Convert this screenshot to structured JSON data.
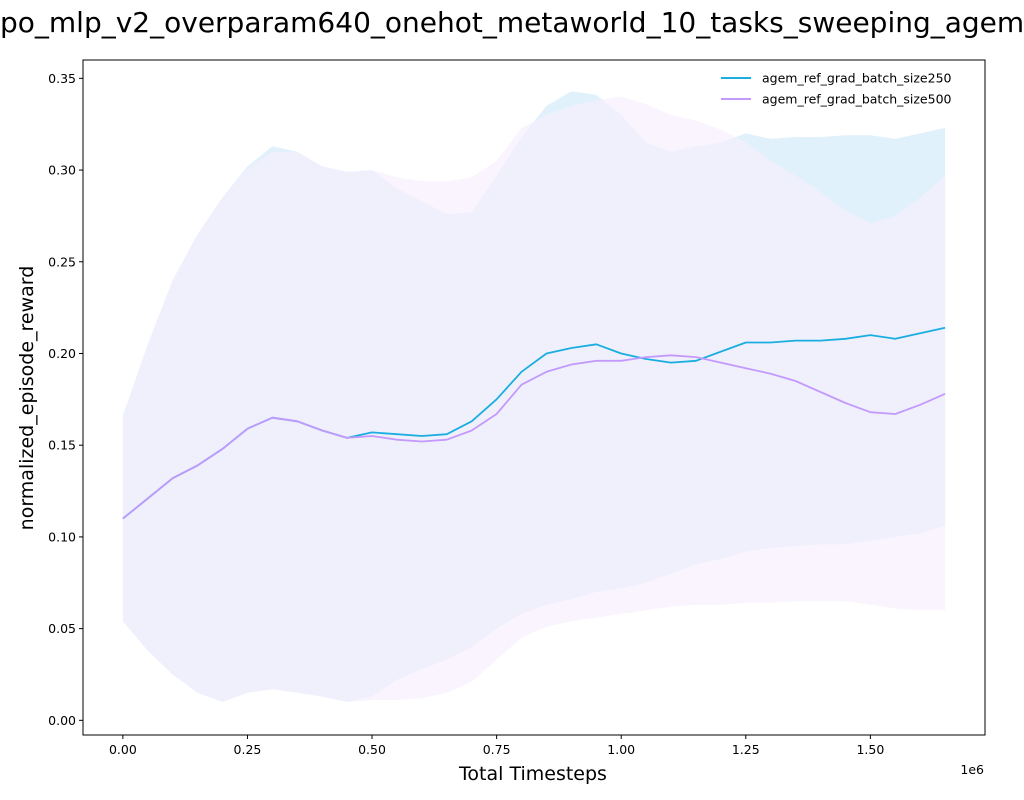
{
  "chart_data": {
    "type": "line",
    "title": "po_mlp_v2_overparam640_onehot_metaworld_10_tasks_sweeping_agem",
    "xlabel": "Total Timesteps",
    "ylabel": "normalized_episode_reward",
    "x_offset_label": "1e6",
    "xlim": [
      -0.08,
      1.73
    ],
    "ylim": [
      -0.008,
      0.36
    ],
    "xticks": [
      0.0,
      0.25,
      0.5,
      0.75,
      1.0,
      1.25,
      1.5
    ],
    "xtick_labels": [
      "0.00",
      "0.25",
      "0.50",
      "0.75",
      "1.00",
      "1.25",
      "1.50"
    ],
    "yticks": [
      0.0,
      0.05,
      0.1,
      0.15,
      0.2,
      0.25,
      0.3,
      0.35
    ],
    "ytick_labels": [
      "0.00",
      "0.05",
      "0.10",
      "0.15",
      "0.20",
      "0.25",
      "0.30",
      "0.35"
    ],
    "grid": false,
    "legend_position": "top-right",
    "series": [
      {
        "name": "agem_ref_grad_batch_size250",
        "color": "#1aaee0",
        "band_color": "#d6ecfb",
        "x": [
          0.0,
          0.05,
          0.1,
          0.15,
          0.2,
          0.25,
          0.3,
          0.35,
          0.4,
          0.45,
          0.5,
          0.55,
          0.6,
          0.65,
          0.7,
          0.75,
          0.8,
          0.85,
          0.9,
          0.95,
          1.0,
          1.05,
          1.1,
          1.15,
          1.2,
          1.25,
          1.3,
          1.35,
          1.4,
          1.45,
          1.5,
          1.55,
          1.6,
          1.65
        ],
        "mean": [
          0.11,
          0.121,
          0.132,
          0.139,
          0.148,
          0.159,
          0.165,
          0.163,
          0.158,
          0.154,
          0.157,
          0.156,
          0.155,
          0.156,
          0.163,
          0.175,
          0.19,
          0.2,
          0.203,
          0.205,
          0.2,
          0.197,
          0.195,
          0.196,
          0.201,
          0.206,
          0.206,
          0.207,
          0.207,
          0.208,
          0.21,
          0.208,
          0.211,
          0.214
        ],
        "upper": [
          0.166,
          0.205,
          0.24,
          0.265,
          0.285,
          0.302,
          0.313,
          0.31,
          0.302,
          0.299,
          0.3,
          0.29,
          0.283,
          0.276,
          0.277,
          0.297,
          0.318,
          0.335,
          0.343,
          0.341,
          0.33,
          0.315,
          0.31,
          0.313,
          0.315,
          0.32,
          0.317,
          0.318,
          0.318,
          0.319,
          0.319,
          0.317,
          0.32,
          0.323
        ],
        "lower": [
          0.054,
          0.038,
          0.025,
          0.015,
          0.01,
          0.015,
          0.017,
          0.015,
          0.013,
          0.01,
          0.013,
          0.022,
          0.028,
          0.033,
          0.04,
          0.05,
          0.058,
          0.063,
          0.066,
          0.07,
          0.072,
          0.075,
          0.08,
          0.085,
          0.088,
          0.092,
          0.094,
          0.095,
          0.096,
          0.096,
          0.098,
          0.1,
          0.102,
          0.106
        ]
      },
      {
        "name": "agem_ref_grad_batch_size500",
        "color": "#c39afc",
        "band_color": "#f7effd",
        "x": [
          0.0,
          0.05,
          0.1,
          0.15,
          0.2,
          0.25,
          0.3,
          0.35,
          0.4,
          0.45,
          0.5,
          0.55,
          0.6,
          0.65,
          0.7,
          0.75,
          0.8,
          0.85,
          0.9,
          0.95,
          1.0,
          1.05,
          1.1,
          1.15,
          1.2,
          1.25,
          1.3,
          1.35,
          1.4,
          1.45,
          1.5,
          1.55,
          1.6,
          1.65
        ],
        "mean": [
          0.11,
          0.121,
          0.132,
          0.139,
          0.148,
          0.159,
          0.165,
          0.163,
          0.158,
          0.154,
          0.155,
          0.153,
          0.152,
          0.153,
          0.158,
          0.167,
          0.183,
          0.19,
          0.194,
          0.196,
          0.196,
          0.198,
          0.199,
          0.198,
          0.195,
          0.192,
          0.189,
          0.185,
          0.179,
          0.173,
          0.168,
          0.167,
          0.172,
          0.178
        ],
        "upper": [
          0.165,
          0.205,
          0.24,
          0.265,
          0.285,
          0.301,
          0.31,
          0.31,
          0.302,
          0.299,
          0.3,
          0.296,
          0.294,
          0.294,
          0.296,
          0.305,
          0.323,
          0.33,
          0.335,
          0.338,
          0.34,
          0.336,
          0.33,
          0.327,
          0.322,
          0.315,
          0.305,
          0.297,
          0.288,
          0.278,
          0.271,
          0.275,
          0.285,
          0.297
        ],
        "lower": [
          0.054,
          0.038,
          0.025,
          0.015,
          0.01,
          0.015,
          0.017,
          0.015,
          0.013,
          0.01,
          0.011,
          0.011,
          0.012,
          0.015,
          0.021,
          0.033,
          0.045,
          0.051,
          0.054,
          0.056,
          0.058,
          0.06,
          0.062,
          0.063,
          0.063,
          0.064,
          0.064,
          0.065,
          0.065,
          0.065,
          0.063,
          0.061,
          0.06,
          0.06
        ]
      }
    ]
  }
}
